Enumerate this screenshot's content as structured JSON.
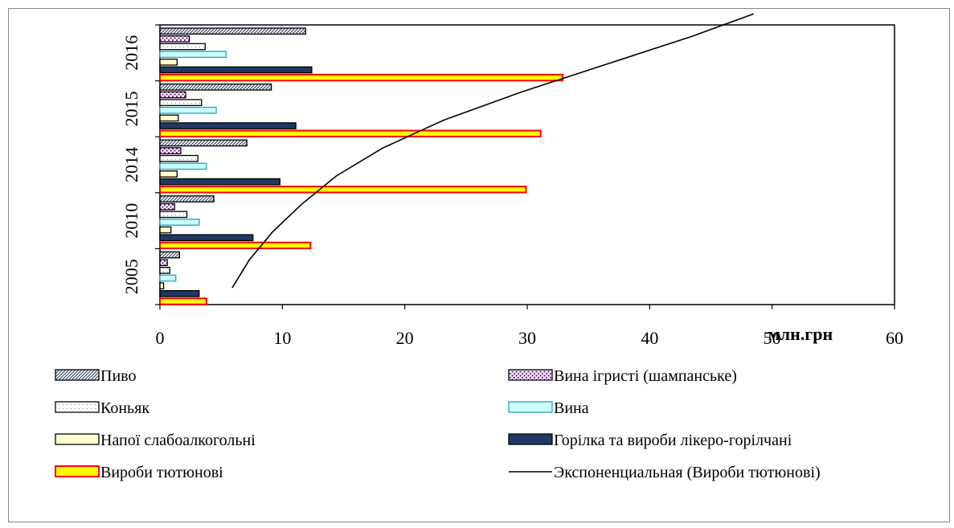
{
  "chart_data": {
    "type": "bar",
    "orientation": "horizontal",
    "categories": [
      "2005",
      "2010",
      "2014",
      "2015",
      "2016"
    ],
    "x_unit_label": "млн.грн",
    "xlim": [
      0,
      60
    ],
    "x_ticks": [
      "0",
      "10",
      "20",
      "30",
      "40",
      "50",
      "60"
    ],
    "grid": false,
    "legend_position": "bottom",
    "series": [
      {
        "name": "Пиво",
        "values": [
          1.6,
          4.4,
          7.1,
          9.1,
          11.9
        ],
        "fill": "#ffffff",
        "stroke": "#000000",
        "pattern": "diagonal"
      },
      {
        "name": "Вина ігристі (шампанське)",
        "values": [
          0.6,
          1.2,
          1.7,
          2.1,
          2.4
        ],
        "fill": "#ffffff",
        "stroke": "#000000",
        "pattern": "dots-purple"
      },
      {
        "name": "Коньяк",
        "values": [
          0.8,
          2.2,
          3.1,
          3.4,
          3.7
        ],
        "fill": "#ffffff",
        "stroke": "#000000",
        "pattern": "dots-light"
      },
      {
        "name": "Вина",
        "values": [
          1.3,
          3.2,
          3.8,
          4.6,
          5.4
        ],
        "fill": "#ccffff",
        "stroke": "#2a9fb8",
        "pattern": "solid"
      },
      {
        "name": "Напої слабоалкогольні",
        "values": [
          0.3,
          0.9,
          1.4,
          1.5,
          1.4
        ],
        "fill": "#ffffcc",
        "stroke": "#000000",
        "pattern": "solid"
      },
      {
        "name": "Горілка та вироби лікеро-горілчані",
        "values": [
          3.2,
          7.6,
          9.8,
          11.1,
          12.4
        ],
        "fill": "#1f3864",
        "stroke": "#000000",
        "pattern": "solid"
      },
      {
        "name": "Вироби тютюнові",
        "values": [
          3.8,
          12.3,
          29.9,
          31.1,
          32.9
        ],
        "fill": "#ffff00",
        "stroke": "#ff0000",
        "pattern": "solid"
      }
    ],
    "trendline": {
      "name": "Экспоненциальная (Вироби тютюнові)",
      "color": "#000000",
      "points": [
        [
          5.9,
          0
        ],
        [
          7.3,
          0.5
        ],
        [
          9.2,
          1
        ],
        [
          11.6,
          1.5
        ],
        [
          14.4,
          2
        ],
        [
          18.2,
          2.5
        ],
        [
          23.2,
          3
        ],
        [
          29.5,
          3.5
        ],
        [
          36.5,
          4
        ],
        [
          43.5,
          4.5
        ],
        [
          48.5,
          4.9
        ]
      ]
    }
  }
}
